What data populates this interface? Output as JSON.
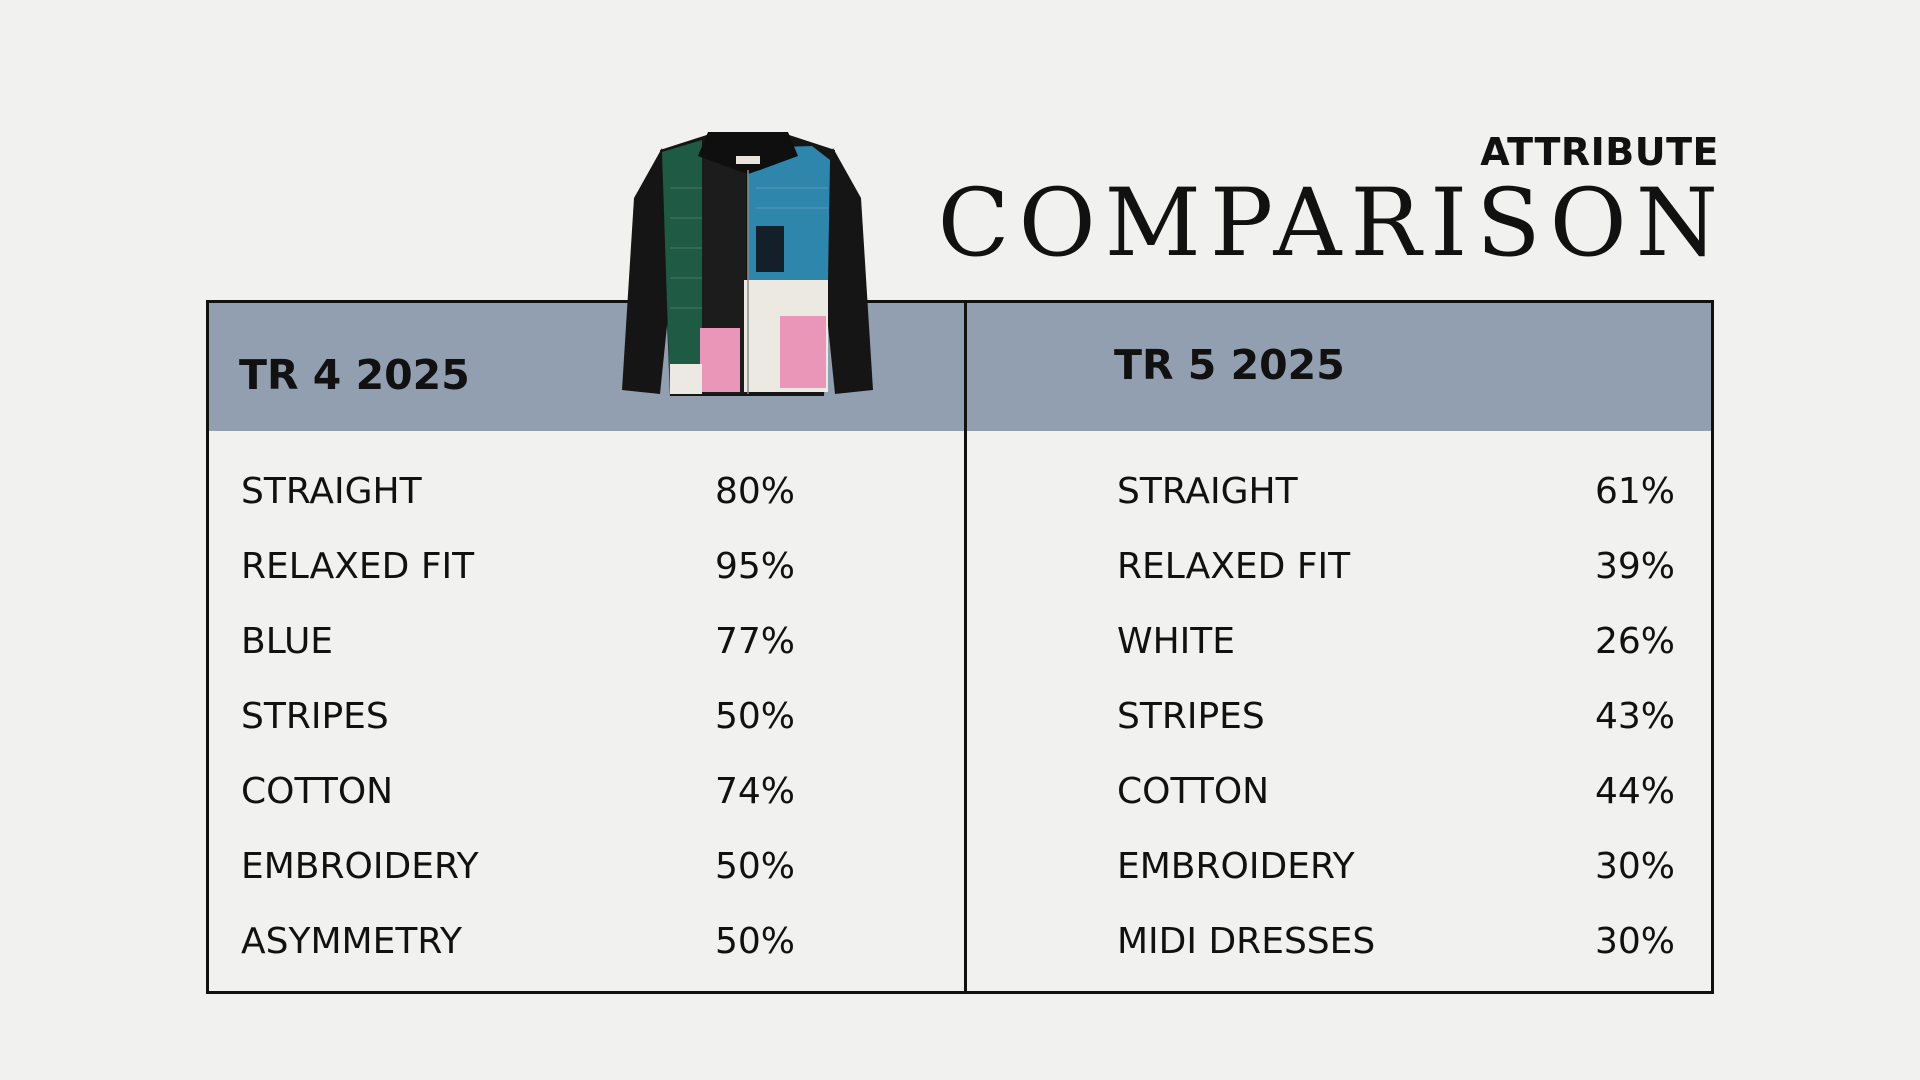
{
  "title": {
    "small": "ATTRIBUTE",
    "large": "COMPARISON"
  },
  "columns": [
    {
      "header": "TR 4 2025",
      "rows": [
        {
          "label": "STRAIGHT",
          "value": "80%"
        },
        {
          "label": "RELAXED FIT",
          "value": "95%"
        },
        {
          "label": "BLUE",
          "value": "77%"
        },
        {
          "label": "STRIPES",
          "value": "50%"
        },
        {
          "label": "COTTON",
          "value": "74%"
        },
        {
          "label": "EMBROIDERY",
          "value": "50%"
        },
        {
          "label": "ASYMMETRY",
          "value": "50%"
        }
      ]
    },
    {
      "header": "TR 5 2025",
      "rows": [
        {
          "label": "STRAIGHT",
          "value": "61%"
        },
        {
          "label": "RELAXED FIT",
          "value": "39%"
        },
        {
          "label": "WHITE",
          "value": "26%"
        },
        {
          "label": "STRIPES",
          "value": "43%"
        },
        {
          "label": "COTTON",
          "value": "44%"
        },
        {
          "label": "EMBROIDERY",
          "value": "30%"
        },
        {
          "label": "MIDI DRESSES",
          "value": "30%"
        }
      ]
    }
  ],
  "colors": {
    "background": "#f1f1ef",
    "header_fill": "#929fb0",
    "border": "#111111",
    "jacket_green": "#1f5a45",
    "jacket_blue": "#2f86ad",
    "jacket_pink": "#e996b8",
    "jacket_cream": "#ece9e2",
    "jacket_black": "#151515"
  },
  "image": {
    "icon": "patchwork-jacket-photo"
  }
}
